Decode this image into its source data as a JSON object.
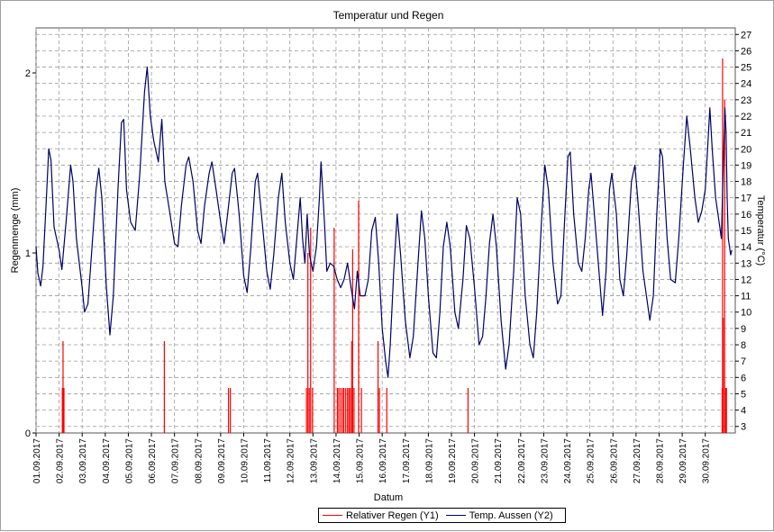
{
  "chart_data": {
    "type": "line",
    "title": "Temperatur und Regen",
    "xlabel": "Datum",
    "y1label": "Regenmenge (mm)",
    "y2label": "Temperatur (°C)",
    "y1lim": [
      0,
      2.25
    ],
    "y1ticks": [
      0,
      1,
      2
    ],
    "y2lim": [
      2.6,
      27.4
    ],
    "y2ticks": [
      3,
      4,
      5,
      6,
      7,
      8,
      9,
      10,
      11,
      12,
      13,
      14,
      15,
      16,
      17,
      18,
      19,
      20,
      21,
      22,
      23,
      24,
      25,
      26,
      27
    ],
    "xlim": [
      0,
      30.3
    ],
    "x_tick_labels": [
      "01.09.2017",
      "02.09.2017",
      "03.09.2017",
      "04.09.2017",
      "05.09.2017",
      "06.09.2017",
      "07.09.2017",
      "08.09.2017",
      "09.09.2017",
      "10.09.2017",
      "11.09.2017",
      "12.09.2017",
      "13.09.2017",
      "14.09.2017",
      "15.09.2017",
      "16.09.2017",
      "17.09.2017",
      "18.09.2017",
      "19.09.2017",
      "20.09.2017",
      "21.09.2017",
      "22.09.2017",
      "23.09.2017",
      "24.09.2017",
      "25.09.2017",
      "26.09.2017",
      "27.09.2017",
      "28.09.2017",
      "29.09.2017",
      "30.09.2017"
    ],
    "grid": true,
    "legend_position": "bottom-center",
    "series": [
      {
        "name": "Relativer Regen (Y1)",
        "axis": "y1",
        "color": "#ff0000",
        "type": "bar",
        "points": [
          [
            1.14,
            0.25
          ],
          [
            1.17,
            0.51
          ],
          [
            1.21,
            0.25
          ],
          [
            5.56,
            0.51
          ],
          [
            8.34,
            0.25
          ],
          [
            8.42,
            0.25
          ],
          [
            11.72,
            0.25
          ],
          [
            11.78,
            1.0
          ],
          [
            11.84,
            0.25
          ],
          [
            11.9,
            1.14
          ],
          [
            11.98,
            0.25
          ],
          [
            12.92,
            1.14
          ],
          [
            13.06,
            0.25
          ],
          [
            13.12,
            0.25
          ],
          [
            13.2,
            0.25
          ],
          [
            13.28,
            0.25
          ],
          [
            13.34,
            0.25
          ],
          [
            13.42,
            0.25
          ],
          [
            13.5,
            0.25
          ],
          [
            13.56,
            0.25
          ],
          [
            13.62,
            0.25
          ],
          [
            13.68,
            0.51
          ],
          [
            13.72,
            1.02
          ],
          [
            13.78,
            0.25
          ],
          [
            13.98,
            1.29
          ],
          [
            14.1,
            0.25
          ],
          [
            14.82,
            0.51
          ],
          [
            14.88,
            0.25
          ],
          [
            15.2,
            0.25
          ],
          [
            18.72,
            0.25
          ],
          [
            29.73,
            0.25
          ],
          [
            29.75,
            2.08
          ],
          [
            29.78,
            0.64
          ],
          [
            29.84,
            1.85
          ],
          [
            29.88,
            0.25
          ],
          [
            29.92,
            0.25
          ]
        ]
      },
      {
        "name": "Temp. Aussen (Y2)",
        "axis": "y2",
        "color": "#000066",
        "type": "line",
        "points": [
          [
            0.0,
            14.0
          ],
          [
            0.08,
            12.4
          ],
          [
            0.2,
            11.6
          ],
          [
            0.3,
            12.8
          ],
          [
            0.45,
            17.0
          ],
          [
            0.55,
            20.0
          ],
          [
            0.65,
            19.3
          ],
          [
            0.78,
            15.2
          ],
          [
            1.0,
            13.8
          ],
          [
            1.12,
            12.6
          ],
          [
            1.3,
            15.5
          ],
          [
            1.5,
            19.0
          ],
          [
            1.6,
            18.0
          ],
          [
            1.75,
            14.5
          ],
          [
            2.0,
            11.5
          ],
          [
            2.1,
            10.0
          ],
          [
            2.25,
            10.5
          ],
          [
            2.4,
            13.5
          ],
          [
            2.6,
            17.5
          ],
          [
            2.72,
            18.8
          ],
          [
            2.85,
            17.0
          ],
          [
            3.05,
            11.5
          ],
          [
            3.2,
            8.6
          ],
          [
            3.35,
            11.0
          ],
          [
            3.55,
            17.5
          ],
          [
            3.7,
            21.6
          ],
          [
            3.8,
            21.8
          ],
          [
            3.92,
            17.5
          ],
          [
            4.1,
            15.5
          ],
          [
            4.3,
            15.0
          ],
          [
            4.5,
            18.5
          ],
          [
            4.7,
            23.5
          ],
          [
            4.82,
            25.0
          ],
          [
            4.95,
            22.0
          ],
          [
            5.1,
            20.5
          ],
          [
            5.3,
            19.2
          ],
          [
            5.45,
            21.8
          ],
          [
            5.58,
            18.0
          ],
          [
            5.75,
            16.5
          ],
          [
            6.0,
            14.2
          ],
          [
            6.15,
            14.0
          ],
          [
            6.3,
            16.5
          ],
          [
            6.5,
            19.0
          ],
          [
            6.62,
            19.5
          ],
          [
            6.8,
            18.0
          ],
          [
            7.0,
            15.0
          ],
          [
            7.15,
            14.2
          ],
          [
            7.3,
            16.5
          ],
          [
            7.5,
            18.5
          ],
          [
            7.62,
            19.2
          ],
          [
            7.8,
            17.5
          ],
          [
            8.0,
            15.5
          ],
          [
            8.15,
            14.2
          ],
          [
            8.3,
            16.0
          ],
          [
            8.5,
            18.5
          ],
          [
            8.6,
            18.8
          ],
          [
            8.8,
            16.0
          ],
          [
            9.0,
            12.2
          ],
          [
            9.15,
            11.2
          ],
          [
            9.3,
            13.8
          ],
          [
            9.5,
            18.0
          ],
          [
            9.6,
            18.5
          ],
          [
            9.8,
            15.5
          ],
          [
            10.0,
            12.5
          ],
          [
            10.15,
            11.4
          ],
          [
            10.3,
            13.5
          ],
          [
            10.5,
            17.0
          ],
          [
            10.65,
            18.5
          ],
          [
            10.8,
            15.5
          ],
          [
            11.0,
            13.0
          ],
          [
            11.15,
            12.0
          ],
          [
            11.3,
            14.5
          ],
          [
            11.45,
            17.0
          ],
          [
            11.55,
            14.5
          ],
          [
            11.65,
            13.0
          ],
          [
            11.75,
            16.0
          ],
          [
            11.85,
            13.5
          ],
          [
            12.0,
            12.5
          ],
          [
            12.15,
            14.0
          ],
          [
            12.28,
            17.0
          ],
          [
            12.35,
            19.2
          ],
          [
            12.5,
            15.5
          ],
          [
            12.6,
            12.5
          ],
          [
            12.75,
            13.0
          ],
          [
            12.9,
            12.8
          ],
          [
            13.05,
            12.0
          ],
          [
            13.2,
            11.5
          ],
          [
            13.35,
            12.0
          ],
          [
            13.5,
            13.0
          ],
          [
            13.65,
            11.5
          ],
          [
            13.8,
            10.2
          ],
          [
            13.92,
            12.5
          ],
          [
            14.05,
            11.0
          ],
          [
            14.25,
            11.0
          ],
          [
            14.4,
            12.0
          ],
          [
            14.55,
            15.0
          ],
          [
            14.7,
            15.8
          ],
          [
            14.85,
            13.0
          ],
          [
            15.0,
            9.0
          ],
          [
            15.15,
            7.0
          ],
          [
            15.25,
            6.0
          ],
          [
            15.35,
            8.0
          ],
          [
            15.5,
            12.5
          ],
          [
            15.65,
            16.0
          ],
          [
            15.8,
            13.5
          ],
          [
            16.0,
            9.5
          ],
          [
            16.2,
            7.2
          ],
          [
            16.35,
            8.5
          ],
          [
            16.55,
            13.0
          ],
          [
            16.7,
            16.2
          ],
          [
            16.85,
            14.5
          ],
          [
            17.0,
            11.0
          ],
          [
            17.2,
            7.5
          ],
          [
            17.35,
            7.2
          ],
          [
            17.5,
            10.0
          ],
          [
            17.65,
            14.0
          ],
          [
            17.8,
            15.5
          ],
          [
            17.95,
            14.0
          ],
          [
            18.15,
            10.0
          ],
          [
            18.3,
            9.0
          ],
          [
            18.5,
            12.0
          ],
          [
            18.65,
            15.3
          ],
          [
            18.8,
            14.5
          ],
          [
            19.0,
            11.5
          ],
          [
            19.2,
            8.0
          ],
          [
            19.35,
            8.5
          ],
          [
            19.5,
            11.0
          ],
          [
            19.65,
            14.2
          ],
          [
            19.8,
            16.0
          ],
          [
            19.95,
            14.0
          ],
          [
            20.15,
            9.5
          ],
          [
            20.35,
            6.5
          ],
          [
            20.5,
            8.0
          ],
          [
            20.7,
            12.5
          ],
          [
            20.85,
            17.0
          ],
          [
            21.0,
            16.0
          ],
          [
            21.2,
            11.0
          ],
          [
            21.4,
            8.0
          ],
          [
            21.55,
            7.2
          ],
          [
            21.7,
            10.0
          ],
          [
            21.9,
            15.5
          ],
          [
            22.05,
            19.0
          ],
          [
            22.2,
            17.5
          ],
          [
            22.4,
            13.0
          ],
          [
            22.6,
            10.5
          ],
          [
            22.75,
            11.0
          ],
          [
            22.9,
            15.5
          ],
          [
            23.05,
            19.5
          ],
          [
            23.15,
            19.8
          ],
          [
            23.3,
            16.0
          ],
          [
            23.5,
            13.0
          ],
          [
            23.65,
            12.5
          ],
          [
            23.8,
            14.5
          ],
          [
            23.95,
            17.5
          ],
          [
            24.05,
            18.5
          ],
          [
            24.25,
            15.0
          ],
          [
            24.45,
            11.5
          ],
          [
            24.55,
            9.8
          ],
          [
            24.7,
            12.5
          ],
          [
            24.85,
            17.5
          ],
          [
            24.95,
            18.5
          ],
          [
            25.15,
            16.0
          ],
          [
            25.3,
            12.0
          ],
          [
            25.45,
            11.0
          ],
          [
            25.6,
            13.5
          ],
          [
            25.8,
            18.0
          ],
          [
            25.95,
            19.0
          ],
          [
            26.1,
            16.5
          ],
          [
            26.3,
            12.5
          ],
          [
            26.45,
            11.0
          ],
          [
            26.6,
            9.5
          ],
          [
            26.75,
            11.0
          ],
          [
            26.9,
            16.0
          ],
          [
            27.05,
            20.0
          ],
          [
            27.15,
            19.5
          ],
          [
            27.35,
            14.5
          ],
          [
            27.5,
            12.0
          ],
          [
            27.7,
            11.8
          ],
          [
            27.85,
            14.5
          ],
          [
            28.05,
            19.0
          ],
          [
            28.2,
            22.0
          ],
          [
            28.35,
            20.0
          ],
          [
            28.55,
            17.0
          ],
          [
            28.7,
            15.5
          ],
          [
            28.85,
            16.2
          ],
          [
            29.0,
            17.5
          ],
          [
            29.1,
            20.0
          ],
          [
            29.2,
            22.5
          ],
          [
            29.3,
            20.0
          ],
          [
            29.45,
            17.0
          ],
          [
            29.6,
            15.5
          ],
          [
            29.7,
            14.5
          ],
          [
            29.78,
            19.0
          ],
          [
            29.85,
            22.5
          ],
          [
            29.9,
            21.0
          ],
          [
            29.95,
            17.0
          ],
          [
            30.0,
            14.5
          ],
          [
            30.1,
            13.5
          ],
          [
            30.15,
            13.8
          ]
        ]
      }
    ]
  }
}
